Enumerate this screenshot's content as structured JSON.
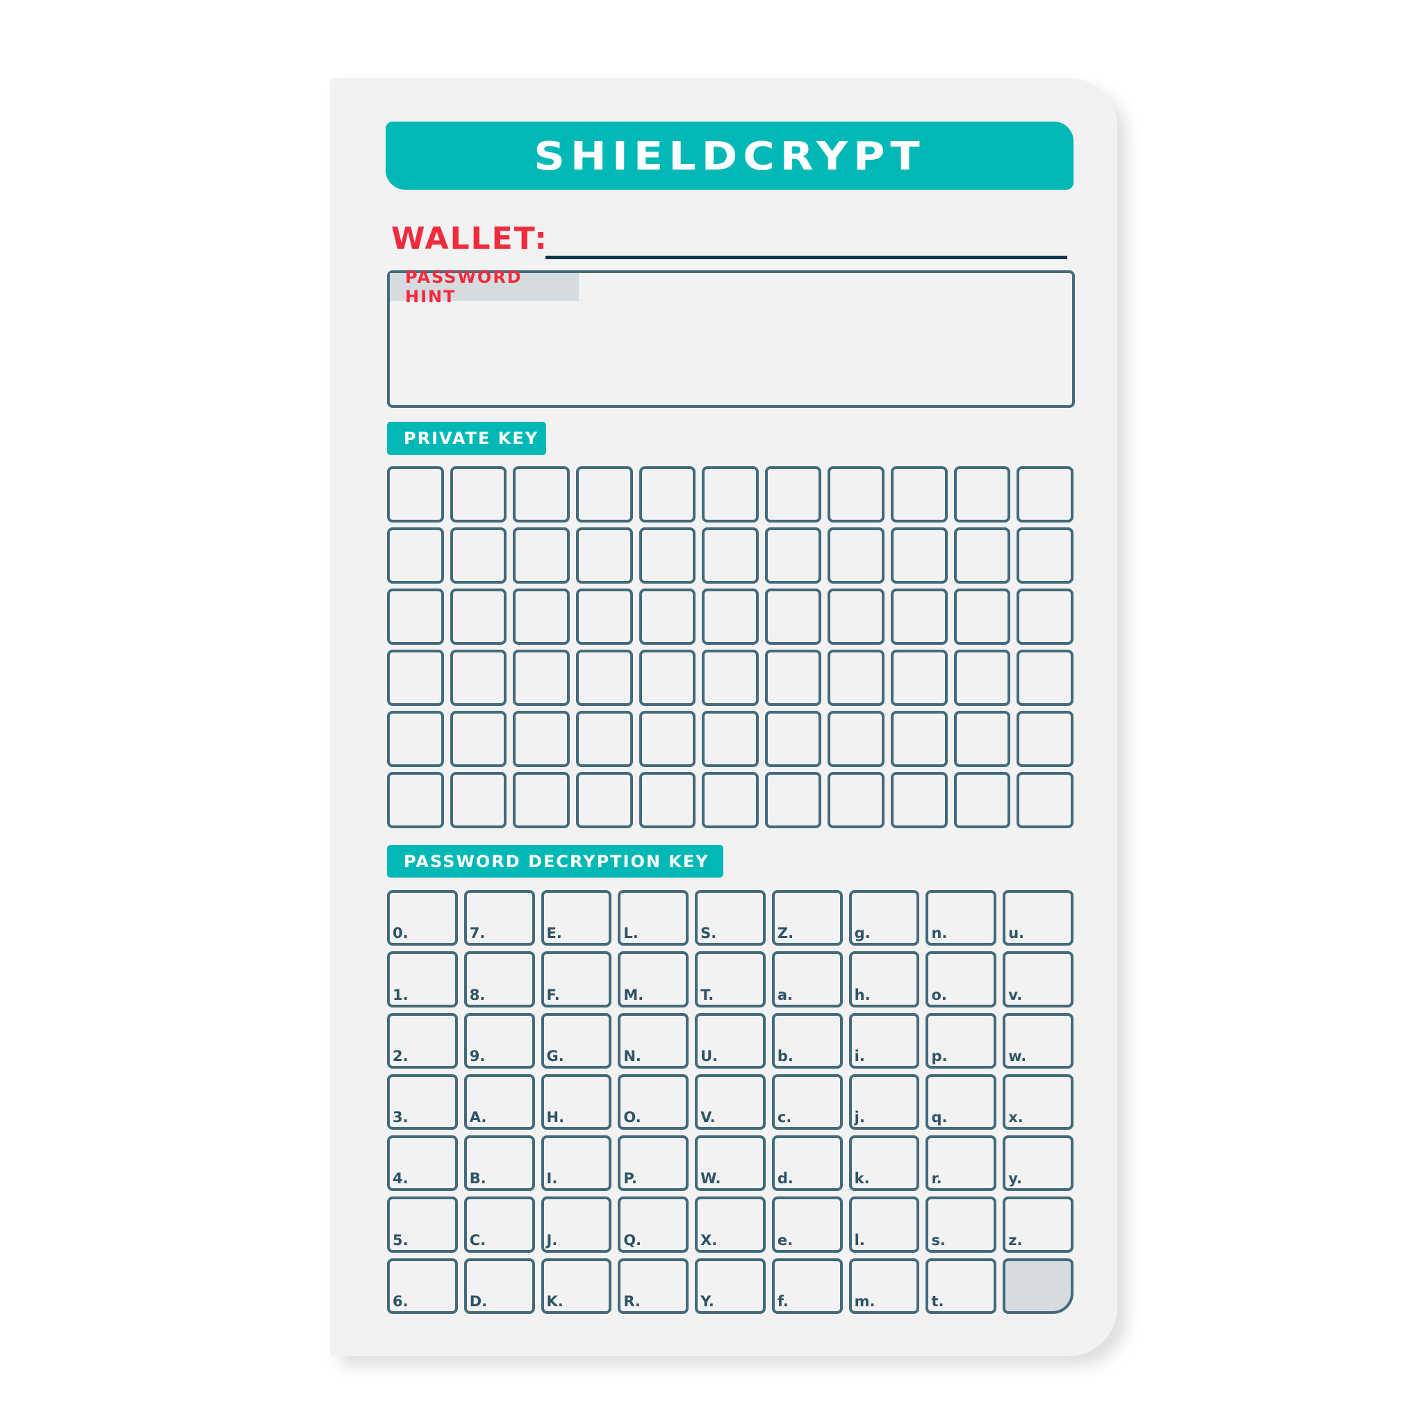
{
  "title": "SHIELDCRYPT",
  "wallet_label": "WALLET:",
  "password_hint_label": "PASSWORD HINT",
  "private_key": {
    "label": "PRIVATE KEY",
    "rows": 6,
    "cols": 11
  },
  "decryption_key": {
    "label": "PASSWORD DECRYPTION KEY",
    "rows": [
      [
        "0.",
        "7.",
        "E.",
        "L.",
        "S.",
        "Z.",
        "g.",
        "n.",
        "u."
      ],
      [
        "1.",
        "8.",
        "F.",
        "M.",
        "T.",
        "a.",
        "h.",
        "o.",
        "v."
      ],
      [
        "2.",
        "9.",
        "G.",
        "N.",
        "U.",
        "b.",
        "i.",
        "p.",
        "w."
      ],
      [
        "3.",
        "A.",
        "H.",
        "O.",
        "V.",
        "c.",
        "j.",
        "q.",
        "x."
      ],
      [
        "4.",
        "B.",
        "I.",
        "P.",
        "W.",
        "d.",
        "k.",
        "r.",
        "y."
      ],
      [
        "5.",
        "C.",
        "J.",
        "Q.",
        "X.",
        "e.",
        "l.",
        "s.",
        "z."
      ],
      [
        "6.",
        "D.",
        "K.",
        "R.",
        "Y.",
        "f.",
        "m.",
        "t.",
        ""
      ]
    ]
  },
  "colors": {
    "accent": "#00b8b5",
    "label_red": "#f02b3c",
    "border": "#436b7b"
  }
}
